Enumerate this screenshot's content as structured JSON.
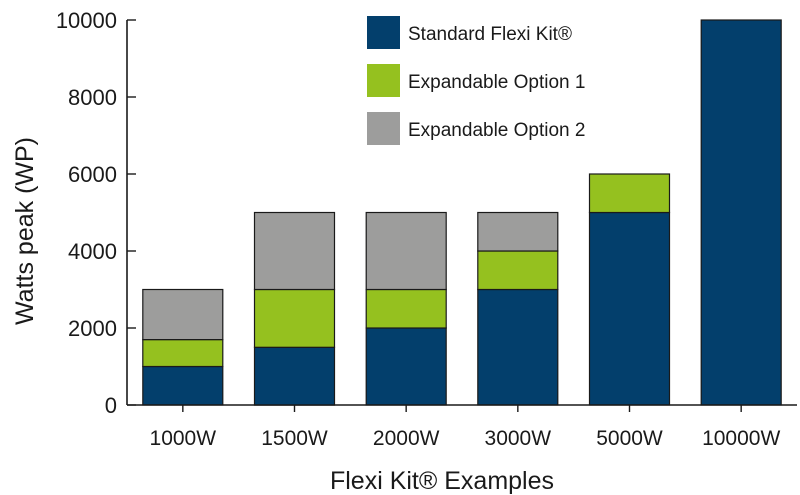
{
  "chart_data": {
    "type": "bar",
    "stacked": true,
    "categories": [
      "1000W",
      "1500W",
      "2000W",
      "3000W",
      "5000W",
      "10000W"
    ],
    "series": [
      {
        "name": "Standard Flexi Kit®",
        "color": "#033f6c",
        "values": [
          1000,
          1500,
          2000,
          3000,
          5000,
          10000
        ]
      },
      {
        "name": "Expandable Option 1",
        "color": "#95c11f",
        "values": [
          700,
          1500,
          1000,
          1000,
          1000,
          0
        ]
      },
      {
        "name": "Expandable Option 2",
        "color": "#9d9d9c",
        "values": [
          1300,
          2000,
          2000,
          1000,
          0,
          0
        ]
      }
    ],
    "yticks": [
      "0",
      "2000",
      "4000",
      "6000",
      "8000",
      "10000"
    ],
    "ylim": [
      0,
      10000
    ],
    "ylabel": "Watts peak (WP)",
    "xlabel": "Flexi Kit® Examples",
    "grid": false,
    "legend_position": "top-right"
  }
}
